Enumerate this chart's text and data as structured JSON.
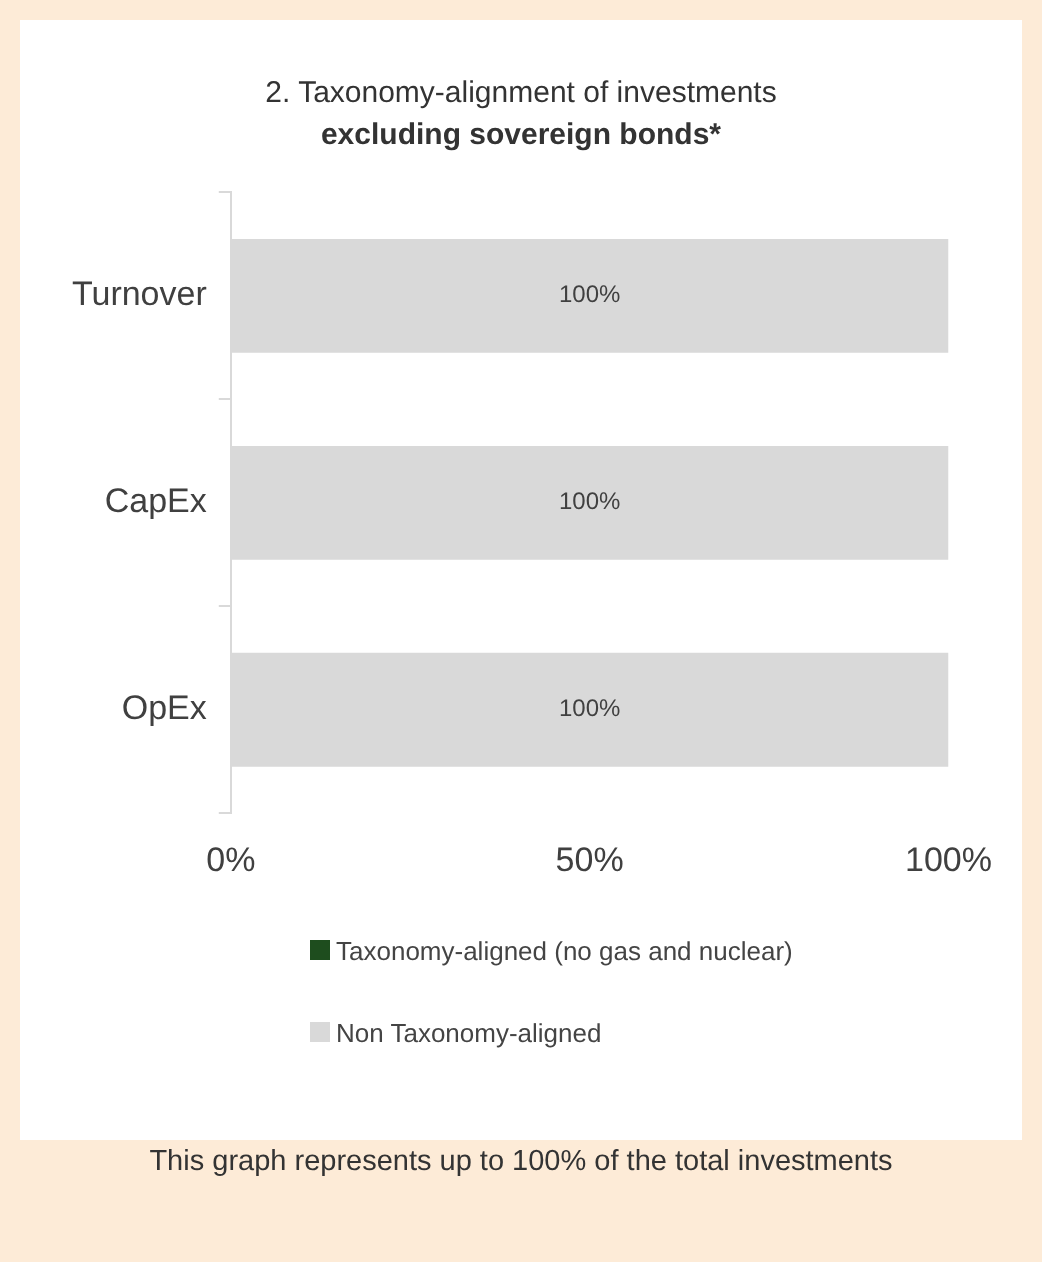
{
  "chart_data": {
    "type": "bar",
    "orientation": "horizontal",
    "stacked": true,
    "title": "2. Taxonomy-alignment of investments",
    "subtitle": "excluding sovereign bonds*",
    "categories": [
      "Turnover",
      "CapEx",
      "OpEx"
    ],
    "series": [
      {
        "name": "Taxonomy-aligned (no gas and nuclear)",
        "color": "#1e4d1e",
        "values": [
          0,
          0,
          0
        ]
      },
      {
        "name": "Non Taxonomy-aligned",
        "color": "#d9d9d9",
        "values": [
          100,
          100,
          100
        ],
        "value_labels": [
          "100%",
          "100%",
          "100%"
        ]
      }
    ],
    "xlim": [
      0,
      100
    ],
    "xticks": [
      {
        "value": 0,
        "label": "0%"
      },
      {
        "value": 50,
        "label": "50%"
      },
      {
        "value": 100,
        "label": "100%"
      }
    ],
    "grid": false,
    "legend": "bottom",
    "annotations": [
      "This graph represents up to 100% of the total investments"
    ]
  }
}
